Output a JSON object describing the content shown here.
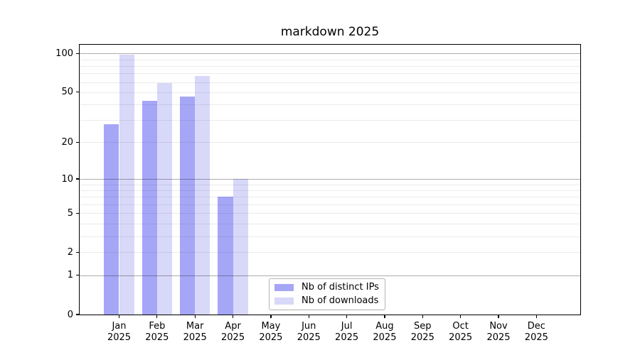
{
  "title": "markdown 2025",
  "legend": {
    "items": [
      {
        "label": "Nb of distinct IPs",
        "color": "#a6a6f7"
      },
      {
        "label": "Nb of downloads",
        "color": "#d8d8f9"
      }
    ]
  },
  "colors": {
    "bar_distinct_ips": "#a6a6f7",
    "bar_downloads": "#d8d8f9",
    "grid_major": "rgba(0,0,0,0.32)",
    "grid_minor": "rgba(0,0,0,0.08)",
    "axis": "#000000"
  },
  "chart_data": {
    "type": "bar",
    "title": "markdown 2025",
    "categories": [
      "Jan 2025",
      "Feb 2025",
      "Mar 2025",
      "Apr 2025",
      "May 2025",
      "Jun 2025",
      "Jul 2025",
      "Aug 2025",
      "Sep 2025",
      "Oct 2025",
      "Nov 2025",
      "Dec 2025"
    ],
    "series": [
      {
        "name": "Nb of distinct IPs",
        "values": [
          28,
          43,
          46,
          7,
          0,
          0,
          0,
          0,
          0,
          0,
          0,
          0
        ],
        "color": "#a6a6f7"
      },
      {
        "name": "Nb of downloads",
        "values": [
          98,
          59,
          67,
          10,
          0,
          0,
          0,
          0,
          0,
          0,
          0,
          0
        ],
        "color": "#d8d8f9"
      }
    ],
    "xlabel": "",
    "ylabel": "",
    "yscale": "log1p",
    "ylim": [
      0,
      117
    ],
    "y_ticks": [
      0,
      1,
      2,
      5,
      10,
      20,
      50,
      100
    ],
    "y_major_gridlines": [
      1,
      10,
      100
    ],
    "y_minor_gridlines": [
      2,
      3,
      4,
      5,
      6,
      7,
      8,
      9,
      20,
      30,
      40,
      50,
      60,
      70,
      80,
      90
    ],
    "grid": "on",
    "legend_position": "bottom-center"
  }
}
